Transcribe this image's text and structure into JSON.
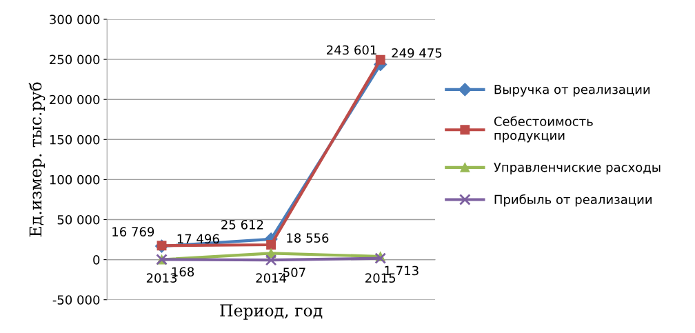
{
  "chart_data": {
    "type": "line",
    "xlabel": "Период, год",
    "ylabel": "Ед.измер. тыс.руб",
    "categories": [
      "2013",
      "2014",
      "2015"
    ],
    "series": [
      {
        "name": "Выручка от реализации",
        "color": "#4a7ebb",
        "marker": "diamond",
        "values": [
          16769,
          25612,
          243601
        ],
        "value_labels": [
          "16 769",
          "25 612",
          "243 601"
        ]
      },
      {
        "name": "Себестоимость продукции",
        "color": "#be4b48",
        "marker": "square",
        "values": [
          17496,
          18556,
          249475
        ],
        "value_labels": [
          "17 496",
          "18 556",
          "249 475"
        ]
      },
      {
        "name": "Управленчиские расходы",
        "color": "#98b954",
        "marker": "triangle",
        "values": [
          0,
          8000,
          4000
        ]
      },
      {
        "name": "Прибыль от реализации",
        "color": "#7d60a0",
        "marker": "cross",
        "values": [
          168,
          -507,
          1713
        ],
        "value_labels": [
          "168",
          "-507",
          "1 713"
        ]
      }
    ],
    "ylim": [
      -50000,
      300000
    ],
    "yticks": [
      {
        "value": -50000,
        "label": "-50 000"
      },
      {
        "value": 0,
        "label": "0"
      },
      {
        "value": 50000,
        "label": "50 000"
      },
      {
        "value": 100000,
        "label": "100 000"
      },
      {
        "value": 150000,
        "label": "150 000"
      },
      {
        "value": 200000,
        "label": "200 000"
      },
      {
        "value": 250000,
        "label": "250 000"
      },
      {
        "value": 300000,
        "label": "300 000"
      }
    ],
    "grid": "y",
    "legend": "right",
    "line_style": "solid"
  }
}
